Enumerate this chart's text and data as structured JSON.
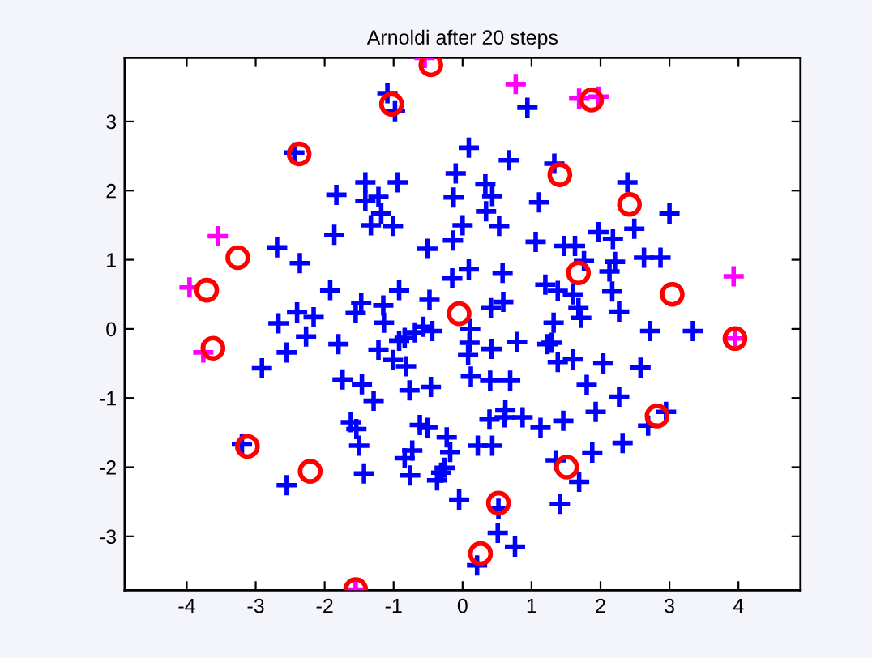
{
  "chart_data": {
    "type": "scatter",
    "title": "Arnoldi after 20 steps",
    "xlim": [
      -4.9,
      4.9
    ],
    "ylim": [
      -3.78,
      3.92
    ],
    "xticks": [
      -4,
      -3,
      -2,
      -1,
      0,
      1,
      2,
      3,
      4
    ],
    "yticks": [
      -3,
      -2,
      -1,
      0,
      1,
      2,
      3
    ],
    "grid": false,
    "series": [
      {
        "color": "#0000ff",
        "marker": "cross",
        "x": [
          -2.44,
          -1.83,
          -2.69,
          -2.36,
          -1.86,
          -1.92,
          -2.67,
          -2.4,
          -2.16,
          0.09,
          0.67,
          1.33,
          -0.1,
          0.33,
          0.43,
          -0.13,
          0.34,
          -1.41,
          -0.94,
          -1.41,
          -1.22,
          -1.18,
          -1.33,
          -1.01,
          0.0,
          0.53,
          1.11,
          -0.14,
          -0.51,
          1.06,
          1.47,
          0.09,
          -0.15,
          0.58,
          -0.92,
          1.2,
          1.38,
          -1.47,
          -1.55,
          -1.15,
          -1.14,
          -0.48,
          0.41,
          0.59,
          -0.57,
          -0.44,
          0.11,
          1.32,
          -1.09,
          -0.98,
          0.94,
          2.39,
          3.0,
          1.97,
          2.18,
          2.49,
          1.63,
          1.76,
          2.21,
          2.13,
          2.63,
          2.87,
          1.6,
          2.17,
          1.68,
          1.72,
          2.27,
          2.72,
          3.34,
          1.29,
          1.38,
          1.6,
          2.04,
          2.58,
          1.8,
          2.27,
          1.46,
          1.93,
          2.69,
          2.95,
          2.32,
          1.88,
          1.35,
          1.69,
          1.41,
          -2.27,
          -2.55,
          -2.91,
          -1.8,
          -1.74,
          -3.2,
          -2.55,
          -0.69,
          -0.84,
          -0.92,
          0.1,
          0.08,
          0.42,
          0.79,
          1.23,
          -1.22,
          -1.01,
          -0.82,
          -1.46,
          -1.29,
          -0.77,
          -0.46,
          0.12,
          0.4,
          0.69,
          -1.62,
          -1.54,
          -1.5,
          -1.43,
          -0.62,
          -0.51,
          -0.23,
          -0.18,
          -0.26,
          -0.31,
          -0.37,
          -0.73,
          -0.84,
          -0.76,
          0.39,
          0.62,
          0.61,
          0.87,
          1.13,
          0.22,
          0.43,
          -0.05,
          0.52,
          0.51,
          0.76,
          0.21
        ],
        "values": [
          2.55,
          1.94,
          1.18,
          0.95,
          1.36,
          0.56,
          0.08,
          0.24,
          0.17,
          2.62,
          2.44,
          2.39,
          2.25,
          2.09,
          1.92,
          1.9,
          1.7,
          2.12,
          2.12,
          1.85,
          1.91,
          1.67,
          1.5,
          1.49,
          1.5,
          1.49,
          1.83,
          1.28,
          1.16,
          1.26,
          1.2,
          0.86,
          0.73,
          0.81,
          0.56,
          0.64,
          0.55,
          0.37,
          0.23,
          0.34,
          0.09,
          0.42,
          0.3,
          0.39,
          0.03,
          -0.03,
          0.0,
          0.09,
          3.41,
          3.15,
          3.2,
          2.12,
          1.67,
          1.4,
          1.3,
          1.45,
          1.2,
          0.98,
          0.97,
          0.83,
          1.03,
          1.03,
          0.5,
          0.54,
          0.3,
          0.16,
          0.25,
          -0.03,
          -0.03,
          -0.2,
          -0.48,
          -0.44,
          -0.5,
          -0.56,
          -0.81,
          -0.98,
          -1.33,
          -1.2,
          -1.4,
          -1.2,
          -1.65,
          -1.79,
          -1.9,
          -2.21,
          -2.53,
          -0.11,
          -0.34,
          -0.57,
          -0.22,
          -0.73,
          -1.67,
          -2.26,
          -0.05,
          -0.13,
          -0.17,
          -0.2,
          -0.38,
          -0.29,
          -0.19,
          -0.22,
          -0.3,
          -0.45,
          -0.54,
          -0.8,
          -1.04,
          -0.89,
          -0.84,
          -0.69,
          -0.75,
          -0.75,
          -1.35,
          -1.45,
          -1.69,
          -2.09,
          -1.39,
          -1.43,
          -1.57,
          -1.78,
          -2.01,
          -2.08,
          -2.19,
          -1.76,
          -1.87,
          -2.12,
          -1.31,
          -1.18,
          -1.28,
          -1.28,
          -1.43,
          -1.69,
          -1.69,
          -2.47,
          -2.6,
          -2.95,
          -3.15,
          -3.42
        ]
      },
      {
        "color": "#ff00ff",
        "marker": "cross",
        "x": [
          -0.55,
          0.77,
          1.69,
          1.97,
          -3.55,
          -3.96,
          -3.76,
          3.93,
          3.95,
          -1.55
        ],
        "values": [
          3.92,
          3.54,
          3.33,
          3.36,
          1.34,
          0.6,
          -0.34,
          0.76,
          -0.14,
          -3.77
        ]
      },
      {
        "color": "#ff0000",
        "marker": "circle",
        "x": [
          -0.46,
          -1.03,
          -2.37,
          1.87,
          1.41,
          2.42,
          -3.71,
          -3.26,
          -3.62,
          -3.12,
          -2.21,
          -1.55,
          -0.05,
          1.68,
          3.04,
          3.95,
          2.82,
          1.51,
          0.52,
          0.26
        ],
        "values": [
          3.82,
          3.25,
          2.53,
          3.31,
          2.23,
          1.8,
          0.56,
          1.03,
          -0.28,
          -1.7,
          -2.06,
          -3.77,
          0.22,
          0.81,
          0.5,
          -0.14,
          -1.26,
          -2.0,
          -2.52,
          -3.25
        ]
      }
    ]
  }
}
